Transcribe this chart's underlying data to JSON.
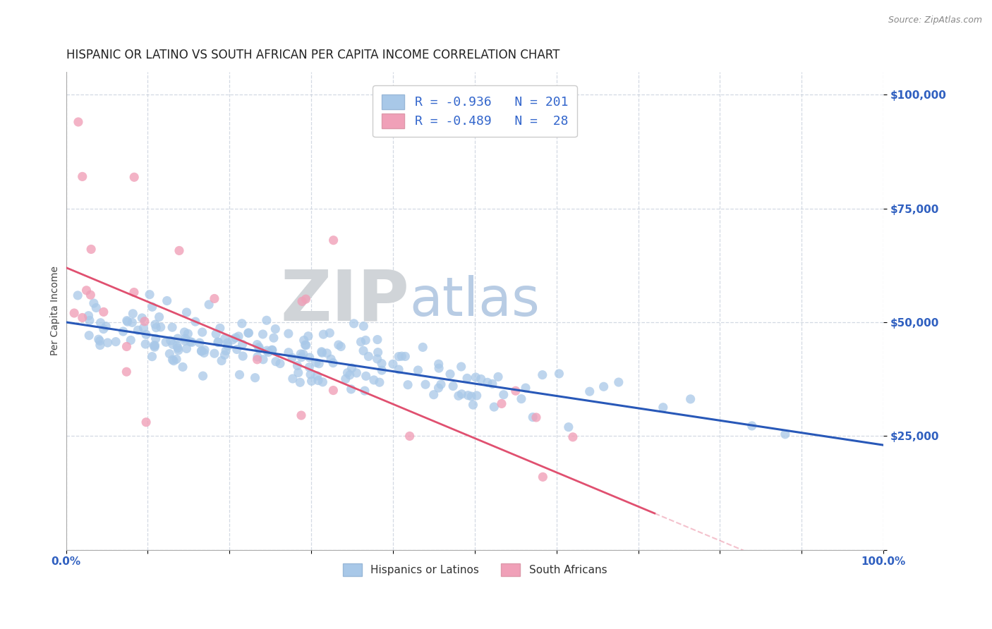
{
  "title": "HISPANIC OR LATINO VS SOUTH AFRICAN PER CAPITA INCOME CORRELATION CHART",
  "source_text": "Source: ZipAtlas.com",
  "ylabel": "Per Capita Income",
  "xlim": [
    0,
    1.0
  ],
  "ylim": [
    0,
    105000
  ],
  "xticks": [
    0.0,
    0.1,
    0.2,
    0.3,
    0.4,
    0.5,
    0.6,
    0.7,
    0.8,
    0.9,
    1.0
  ],
  "xtick_labels": [
    "0.0%",
    "",
    "",
    "",
    "",
    "",
    "",
    "",
    "",
    "",
    "100.0%"
  ],
  "ytick_vals": [
    0,
    25000,
    50000,
    75000,
    100000
  ],
  "ytick_labels": [
    "",
    "$25,000",
    "$50,000",
    "$75,000",
    "$100,000"
  ],
  "blue_R": -0.936,
  "blue_N": 201,
  "pink_R": -0.489,
  "pink_N": 28,
  "blue_color": "#a8c8e8",
  "pink_color": "#f0a0b8",
  "blue_line_color": "#2858b8",
  "pink_line_color": "#e8506888",
  "pink_line_solid_color": "#e05070",
  "title_color": "#222222",
  "axis_tick_color": "#3060c0",
  "watermark_zip_color": "#d0d4d8",
  "watermark_atlas_color": "#b8cce4",
  "grid_color": "#c8d0dc",
  "background_color": "#ffffff",
  "legend_label_blue": "Hispanics or Latinos",
  "legend_label_pink": "South Africans",
  "title_fontsize": 12,
  "axis_label_fontsize": 10,
  "tick_fontsize": 11
}
